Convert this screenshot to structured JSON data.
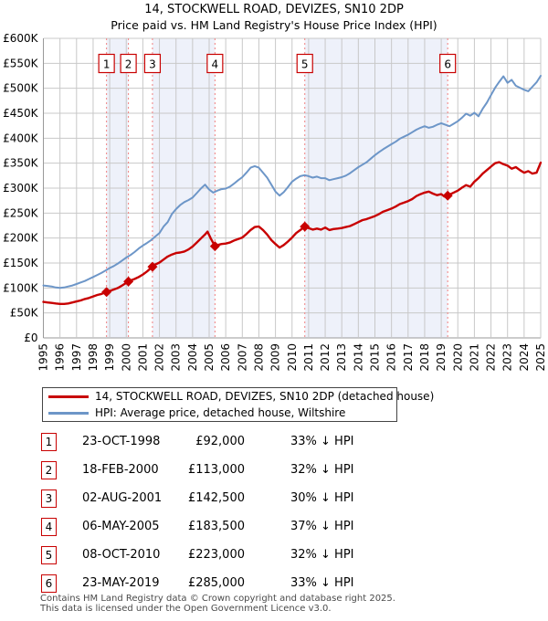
{
  "title": {
    "line1": "14, STOCKWELL ROAD, DEVIZES, SN10 2DP",
    "line2": "Price paid vs. HM Land Registry's House Price Index (HPI)"
  },
  "chart_data": {
    "type": "line",
    "x_range": [
      1995,
      2025
    ],
    "y_range_k": [
      0,
      600
    ],
    "y_tick_step_k": 50,
    "unit_note": "series point values are prices in thousands of GBP",
    "x_tick_labels": [
      "1995",
      "1996",
      "1997",
      "1998",
      "1999",
      "2000",
      "2001",
      "2002",
      "2003",
      "2004",
      "2005",
      "2006",
      "2007",
      "2008",
      "2009",
      "2010",
      "2011",
      "2012",
      "2013",
      "2014",
      "2015",
      "2016",
      "2017",
      "2018",
      "2019",
      "2020",
      "2021",
      "2022",
      "2023",
      "2024",
      "2025"
    ],
    "y_tick_labels": [
      "£0",
      "£50K",
      "£100K",
      "£150K",
      "£200K",
      "£250K",
      "£300K",
      "£350K",
      "£400K",
      "£450K",
      "£500K",
      "£550K",
      "£600K"
    ],
    "colors": {
      "band": "#eef1fa",
      "grid": "#c8c8c8",
      "axis": "#999999",
      "sale_line": "#f08080",
      "marker_box_border": "#c80000"
    },
    "series": [
      {
        "name": "price",
        "label": "14, STOCKWELL ROAD, DEVIZES, SN10 2DP (detached house)",
        "color": "#c80000",
        "points": [
          [
            1995.0,
            72
          ],
          [
            1995.25,
            71
          ],
          [
            1995.5,
            70
          ],
          [
            1995.75,
            69
          ],
          [
            1996.0,
            68
          ],
          [
            1996.25,
            68
          ],
          [
            1996.5,
            69
          ],
          [
            1996.75,
            71
          ],
          [
            1997.0,
            73
          ],
          [
            1997.25,
            75
          ],
          [
            1997.5,
            78
          ],
          [
            1997.75,
            80
          ],
          [
            1998.0,
            83
          ],
          [
            1998.25,
            86
          ],
          [
            1998.5,
            88
          ],
          [
            1998.81,
            92
          ],
          [
            1999.0,
            94
          ],
          [
            1999.25,
            97
          ],
          [
            1999.5,
            100
          ],
          [
            1999.75,
            105
          ],
          [
            2000.13,
            113
          ],
          [
            2000.25,
            115
          ],
          [
            2000.5,
            118
          ],
          [
            2000.75,
            122
          ],
          [
            2001.0,
            127
          ],
          [
            2001.25,
            133
          ],
          [
            2001.58,
            142.5
          ],
          [
            2001.75,
            147
          ],
          [
            2002.0,
            151
          ],
          [
            2002.25,
            157
          ],
          [
            2002.5,
            163
          ],
          [
            2002.75,
            167
          ],
          [
            2003.0,
            170
          ],
          [
            2003.25,
            171
          ],
          [
            2003.5,
            173
          ],
          [
            2003.75,
            177
          ],
          [
            2004.0,
            183
          ],
          [
            2004.25,
            191
          ],
          [
            2004.5,
            199
          ],
          [
            2004.75,
            207
          ],
          [
            2004.9,
            213
          ],
          [
            2005.1,
            199
          ],
          [
            2005.35,
            183.5
          ],
          [
            2005.5,
            186
          ],
          [
            2005.75,
            188
          ],
          [
            2006.0,
            189
          ],
          [
            2006.25,
            191
          ],
          [
            2006.5,
            195
          ],
          [
            2006.75,
            198
          ],
          [
            2007.0,
            201
          ],
          [
            2007.25,
            208
          ],
          [
            2007.5,
            216
          ],
          [
            2007.75,
            222
          ],
          [
            2008.0,
            223
          ],
          [
            2008.25,
            216
          ],
          [
            2008.5,
            207
          ],
          [
            2008.75,
            196
          ],
          [
            2009.0,
            188
          ],
          [
            2009.25,
            181
          ],
          [
            2009.5,
            186
          ],
          [
            2009.75,
            193
          ],
          [
            2010.0,
            201
          ],
          [
            2010.25,
            210
          ],
          [
            2010.5,
            216
          ],
          [
            2010.77,
            223
          ],
          [
            2011.0,
            220
          ],
          [
            2011.25,
            217
          ],
          [
            2011.5,
            219
          ],
          [
            2011.75,
            217
          ],
          [
            2012.0,
            221
          ],
          [
            2012.25,
            216
          ],
          [
            2012.5,
            218
          ],
          [
            2012.75,
            219
          ],
          [
            2013.0,
            220
          ],
          [
            2013.25,
            222
          ],
          [
            2013.5,
            224
          ],
          [
            2013.75,
            228
          ],
          [
            2014.0,
            232
          ],
          [
            2014.25,
            236
          ],
          [
            2014.5,
            238
          ],
          [
            2014.75,
            241
          ],
          [
            2015.0,
            244
          ],
          [
            2015.25,
            248
          ],
          [
            2015.5,
            253
          ],
          [
            2015.75,
            256
          ],
          [
            2016.0,
            259
          ],
          [
            2016.25,
            263
          ],
          [
            2016.5,
            268
          ],
          [
            2016.75,
            271
          ],
          [
            2017.0,
            274
          ],
          [
            2017.25,
            278
          ],
          [
            2017.5,
            284
          ],
          [
            2017.75,
            288
          ],
          [
            2018.0,
            291
          ],
          [
            2018.25,
            293
          ],
          [
            2018.5,
            289
          ],
          [
            2018.75,
            286
          ],
          [
            2019.0,
            288
          ],
          [
            2019.2,
            283
          ],
          [
            2019.39,
            285
          ],
          [
            2019.5,
            287
          ],
          [
            2019.75,
            291
          ],
          [
            2020.0,
            295
          ],
          [
            2020.25,
            301
          ],
          [
            2020.5,
            306
          ],
          [
            2020.75,
            303
          ],
          [
            2021.0,
            313
          ],
          [
            2021.25,
            320
          ],
          [
            2021.5,
            329
          ],
          [
            2021.75,
            336
          ],
          [
            2022.0,
            343
          ],
          [
            2022.25,
            350
          ],
          [
            2022.5,
            352
          ],
          [
            2022.75,
            348
          ],
          [
            2023.0,
            345
          ],
          [
            2023.25,
            339
          ],
          [
            2023.5,
            342
          ],
          [
            2023.75,
            336
          ],
          [
            2024.0,
            331
          ],
          [
            2024.25,
            334
          ],
          [
            2024.5,
            329
          ],
          [
            2024.75,
            331
          ],
          [
            2025.0,
            351
          ]
        ]
      },
      {
        "name": "hpi",
        "label": "HPI: Average price, detached house, Wiltshire",
        "color": "#6d96c8",
        "points": [
          [
            1995.0,
            105
          ],
          [
            1995.25,
            104
          ],
          [
            1995.5,
            103
          ],
          [
            1995.75,
            101
          ],
          [
            1996.0,
            100
          ],
          [
            1996.25,
            101
          ],
          [
            1996.5,
            103
          ],
          [
            1996.75,
            105
          ],
          [
            1997.0,
            108
          ],
          [
            1997.25,
            111
          ],
          [
            1997.5,
            114
          ],
          [
            1997.75,
            118
          ],
          [
            1998.0,
            122
          ],
          [
            1998.25,
            126
          ],
          [
            1998.5,
            130
          ],
          [
            1998.75,
            135
          ],
          [
            1999.0,
            140
          ],
          [
            1999.25,
            144
          ],
          [
            1999.5,
            149
          ],
          [
            1999.75,
            155
          ],
          [
            2000.0,
            161
          ],
          [
            2000.25,
            166
          ],
          [
            2000.5,
            172
          ],
          [
            2000.75,
            179
          ],
          [
            2001.0,
            185
          ],
          [
            2001.25,
            190
          ],
          [
            2001.5,
            196
          ],
          [
            2001.75,
            203
          ],
          [
            2002.0,
            210
          ],
          [
            2002.25,
            223
          ],
          [
            2002.5,
            232
          ],
          [
            2002.75,
            248
          ],
          [
            2003.0,
            258
          ],
          [
            2003.25,
            266
          ],
          [
            2003.5,
            272
          ],
          [
            2003.75,
            276
          ],
          [
            2004.0,
            281
          ],
          [
            2004.25,
            290
          ],
          [
            2004.5,
            299
          ],
          [
            2004.75,
            307
          ],
          [
            2005.0,
            297
          ],
          [
            2005.25,
            291
          ],
          [
            2005.5,
            295
          ],
          [
            2005.75,
            298
          ],
          [
            2006.0,
            299
          ],
          [
            2006.25,
            303
          ],
          [
            2006.5,
            309
          ],
          [
            2006.75,
            316
          ],
          [
            2007.0,
            322
          ],
          [
            2007.25,
            331
          ],
          [
            2007.5,
            341
          ],
          [
            2007.75,
            344
          ],
          [
            2008.0,
            341
          ],
          [
            2008.25,
            331
          ],
          [
            2008.5,
            321
          ],
          [
            2008.75,
            307
          ],
          [
            2009.0,
            293
          ],
          [
            2009.25,
            285
          ],
          [
            2009.5,
            292
          ],
          [
            2009.75,
            302
          ],
          [
            2010.0,
            313
          ],
          [
            2010.25,
            319
          ],
          [
            2010.5,
            324
          ],
          [
            2010.75,
            326
          ],
          [
            2011.0,
            324
          ],
          [
            2011.25,
            321
          ],
          [
            2011.5,
            323
          ],
          [
            2011.75,
            320
          ],
          [
            2012.0,
            320
          ],
          [
            2012.25,
            316
          ],
          [
            2012.5,
            318
          ],
          [
            2012.75,
            320
          ],
          [
            2013.0,
            322
          ],
          [
            2013.25,
            325
          ],
          [
            2013.5,
            330
          ],
          [
            2013.75,
            336
          ],
          [
            2014.0,
            342
          ],
          [
            2014.25,
            347
          ],
          [
            2014.5,
            352
          ],
          [
            2014.75,
            359
          ],
          [
            2015.0,
            366
          ],
          [
            2015.25,
            372
          ],
          [
            2015.5,
            378
          ],
          [
            2015.75,
            383
          ],
          [
            2016.0,
            388
          ],
          [
            2016.25,
            393
          ],
          [
            2016.5,
            399
          ],
          [
            2016.75,
            403
          ],
          [
            2017.0,
            407
          ],
          [
            2017.25,
            412
          ],
          [
            2017.5,
            417
          ],
          [
            2017.75,
            421
          ],
          [
            2018.0,
            424
          ],
          [
            2018.25,
            421
          ],
          [
            2018.5,
            423
          ],
          [
            2018.75,
            427
          ],
          [
            2019.0,
            430
          ],
          [
            2019.25,
            427
          ],
          [
            2019.5,
            424
          ],
          [
            2019.75,
            429
          ],
          [
            2020.0,
            434
          ],
          [
            2020.25,
            441
          ],
          [
            2020.5,
            449
          ],
          [
            2020.75,
            445
          ],
          [
            2021.0,
            451
          ],
          [
            2021.25,
            444
          ],
          [
            2021.5,
            459
          ],
          [
            2021.75,
            471
          ],
          [
            2022.0,
            486
          ],
          [
            2022.25,
            501
          ],
          [
            2022.5,
            513
          ],
          [
            2022.75,
            524
          ],
          [
            2023.0,
            511
          ],
          [
            2023.25,
            517
          ],
          [
            2023.5,
            505
          ],
          [
            2023.75,
            501
          ],
          [
            2024.0,
            497
          ],
          [
            2024.25,
            494
          ],
          [
            2024.5,
            503
          ],
          [
            2024.75,
            512
          ],
          [
            2025.0,
            525
          ]
        ]
      }
    ],
    "sales": [
      {
        "num": "1",
        "date": "23-OCT-1998",
        "year": 1998.81,
        "price_k": 92,
        "price_label": "£92,000",
        "vs_hpi": "33% ↓ HPI"
      },
      {
        "num": "2",
        "date": "18-FEB-2000",
        "year": 2000.13,
        "price_k": 113,
        "price_label": "£113,000",
        "vs_hpi": "32% ↓ HPI"
      },
      {
        "num": "3",
        "date": "02-AUG-2001",
        "year": 2001.58,
        "price_k": 142.5,
        "price_label": "£142,500",
        "vs_hpi": "30% ↓ HPI"
      },
      {
        "num": "4",
        "date": "06-MAY-2005",
        "year": 2005.35,
        "price_k": 183.5,
        "price_label": "£183,500",
        "vs_hpi": "37% ↓ HPI"
      },
      {
        "num": "5",
        "date": "08-OCT-2010",
        "year": 2010.77,
        "price_k": 223,
        "price_label": "£223,000",
        "vs_hpi": "32% ↓ HPI"
      },
      {
        "num": "6",
        "date": "23-MAY-2019",
        "year": 2019.39,
        "price_k": 285,
        "price_label": "£285,000",
        "vs_hpi": "33% ↓ HPI"
      }
    ],
    "ownership_bands": [
      [
        1998.81,
        2000.13
      ],
      [
        2001.58,
        2005.35
      ],
      [
        2010.77,
        2019.39
      ]
    ]
  },
  "footer": {
    "line1": "Contains HM Land Registry data © Crown copyright and database right 2025.",
    "line2": "This data is licensed under the Open Government Licence v3.0."
  }
}
